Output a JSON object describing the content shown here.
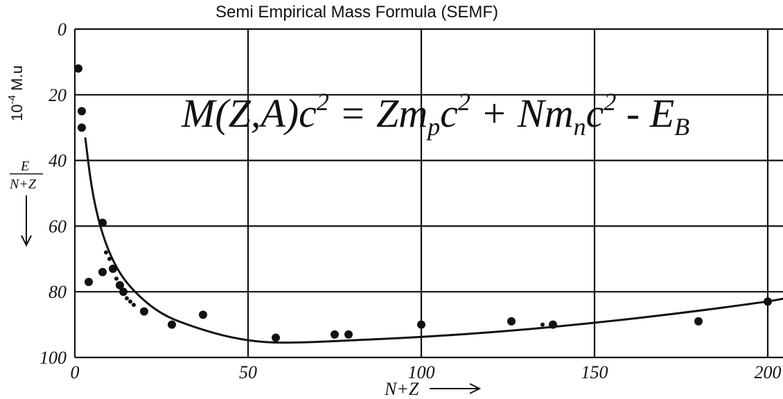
{
  "title": "Semi Empirical Mass Formula (SEMF)",
  "chart_data": {
    "type": "scatter",
    "title": "Semi Empirical Mass Formula (SEMF)",
    "xlabel": "N+Z",
    "ylabel_num": "E",
    "ylabel_den": "N+Z",
    "unit_base": "10",
    "unit_exp": "-4",
    "unit_rest": " M.u",
    "xlim": [
      0,
      205
    ],
    "ylim": [
      0,
      100
    ],
    "y_inverted": true,
    "x_ticks": [
      {
        "value": 0,
        "label": "0"
      },
      {
        "value": 50,
        "label": "50"
      },
      {
        "value": 100,
        "label": "100"
      },
      {
        "value": 150,
        "label": "150"
      },
      {
        "value": 200,
        "label": "200"
      }
    ],
    "y_ticks": [
      {
        "value": 0,
        "label": "0"
      },
      {
        "value": 20,
        "label": "20"
      },
      {
        "value": 40,
        "label": "40"
      },
      {
        "value": 60,
        "label": "60"
      },
      {
        "value": 80,
        "label": "80"
      },
      {
        "value": 100,
        "label": "100"
      }
    ],
    "grid": true,
    "points": [
      [
        1,
        12
      ],
      [
        2,
        25
      ],
      [
        2,
        30
      ],
      [
        4,
        77
      ],
      [
        8,
        59
      ],
      [
        8,
        74
      ],
      [
        11,
        73
      ],
      [
        13,
        78
      ],
      [
        14,
        80
      ],
      [
        20,
        86
      ],
      [
        28,
        90
      ],
      [
        37,
        87
      ],
      [
        58,
        94
      ],
      [
        75,
        93
      ],
      [
        79,
        93
      ],
      [
        100,
        90
      ],
      [
        126,
        89
      ],
      [
        138,
        90
      ],
      [
        180,
        89
      ],
      [
        200,
        83
      ]
    ],
    "small_points": [
      [
        9,
        68
      ],
      [
        10,
        70
      ],
      [
        12,
        76
      ],
      [
        15,
        82
      ],
      [
        16,
        83
      ],
      [
        17,
        84
      ],
      [
        135,
        90
      ]
    ],
    "curve": [
      [
        3,
        33
      ],
      [
        5,
        50
      ],
      [
        8,
        63
      ],
      [
        12,
        73
      ],
      [
        17,
        80
      ],
      [
        25,
        87
      ],
      [
        35,
        91
      ],
      [
        45,
        94
      ],
      [
        55,
        95.5
      ],
      [
        65,
        95.5
      ],
      [
        80,
        94.8
      ],
      [
        100,
        93.8
      ],
      [
        125,
        92
      ],
      [
        150,
        89.5
      ],
      [
        175,
        86.5
      ],
      [
        200,
        83
      ],
      [
        205,
        82
      ]
    ],
    "equation": {
      "lhs": "M(Z,A)c",
      "lhs_sup": "2",
      "eq": " = Zm",
      "sub_p": "p",
      "c2a": "c",
      "sup2a": "2",
      "plus": " + Nm",
      "sub_n": "n",
      "c2b": "c",
      "sup2b": "2",
      "minus": " - E",
      "sub_b": "B"
    }
  }
}
